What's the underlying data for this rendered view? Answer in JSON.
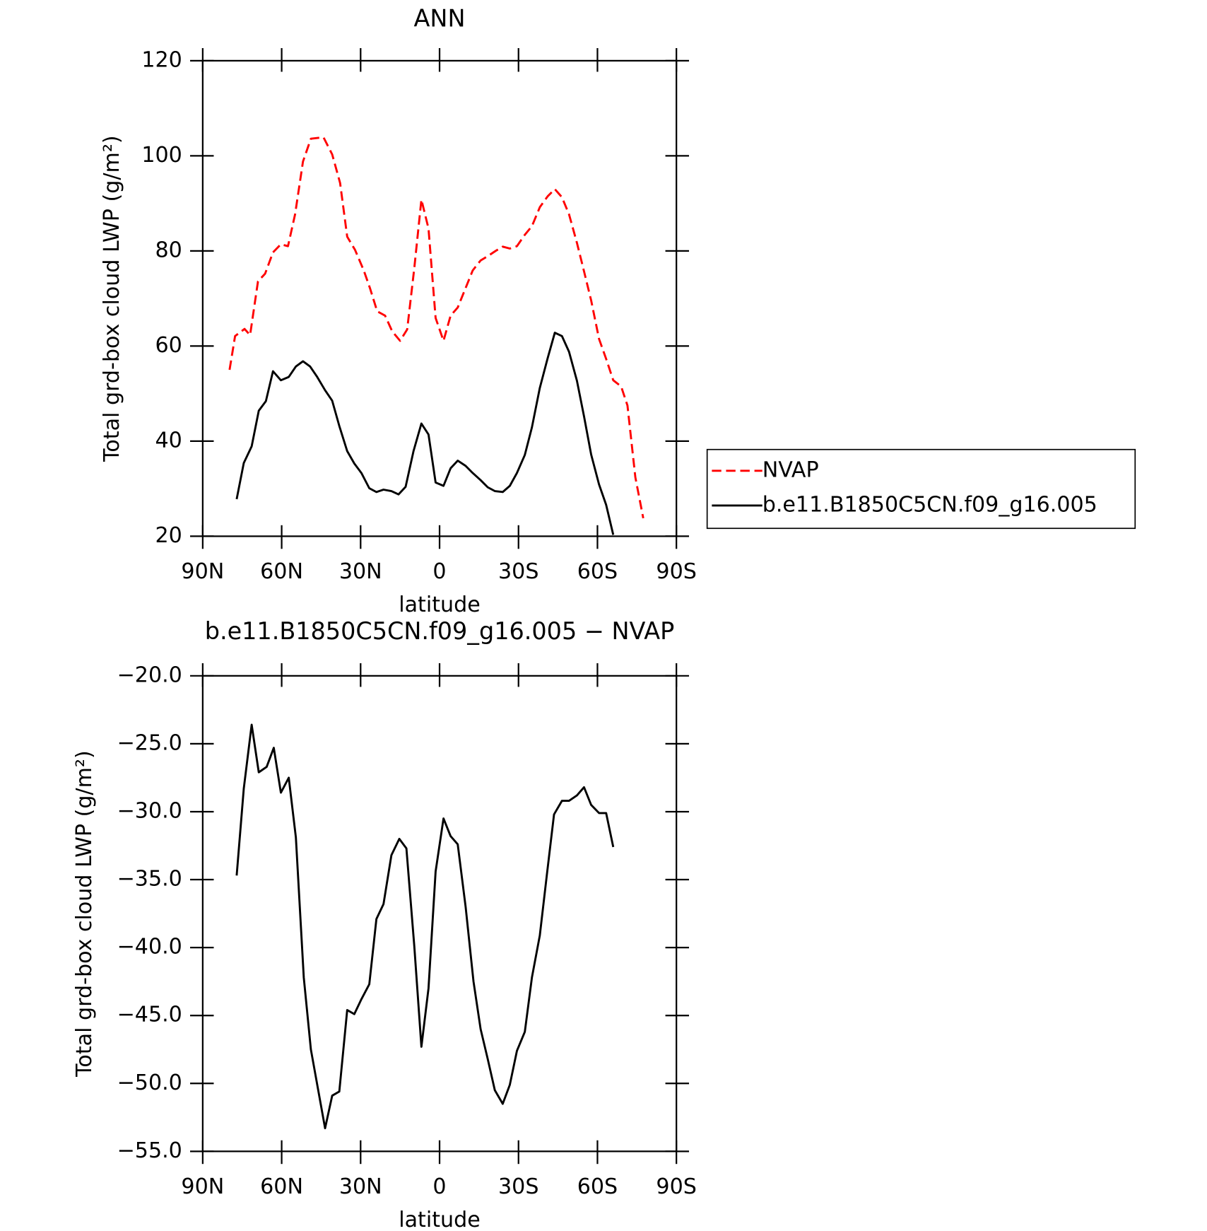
{
  "chart_data": [
    {
      "type": "line",
      "title": "ANN",
      "xlabel": "latitude",
      "ylabel": "Total grd-box cloud LWP (g/m²)",
      "xlim": [
        90,
        -90
      ],
      "xticks": [
        {
          "value": 90,
          "label": "90N"
        },
        {
          "value": 60,
          "label": "60N"
        },
        {
          "value": 30,
          "label": "30N"
        },
        0,
        {
          "value": -30,
          "label": "30S"
        },
        {
          "value": -60,
          "label": "60S"
        },
        {
          "value": -90,
          "label": "90S"
        }
      ],
      "ylim": [
        20,
        120
      ],
      "yticks": [
        20,
        40,
        60,
        80,
        100,
        120
      ],
      "legend": "right",
      "series": [
        {
          "name": "NVAP",
          "color": "#ff0000",
          "linestyle": "dashed",
          "x": [
            79.8,
            77.7,
            74.1,
            72.0,
            69.0,
            66.3,
            63.3,
            60.3,
            57.6,
            54.9,
            51.9,
            48.9,
            44.1,
            40.8,
            37.8,
            35.1,
            32.1,
            28.8,
            26.4,
            23.7,
            20.7,
            18.0,
            15.0,
            12.3,
            9.6,
            6.9,
            4.2,
            1.5,
            -1.5,
            -4.2,
            -6.9,
            -9.9,
            -12.6,
            -15.6,
            -18.3,
            -21.3,
            -24.0,
            -26.7,
            -29.4,
            -32.4,
            -35.1,
            -38.1,
            -41.1,
            -43.8,
            -46.5,
            -49.2,
            -52.2,
            -54.9,
            -57.6,
            -60.6,
            -63.3,
            -66.0,
            -69.0,
            -71.4,
            -74.4,
            -77.4
          ],
          "values": [
            55.0,
            62.1,
            63.6,
            62.3,
            73.6,
            75.2,
            79.7,
            81.4,
            81.0,
            87.7,
            98.8,
            103.6,
            103.9,
            100.3,
            94.3,
            83.0,
            80.2,
            75.9,
            72.1,
            67.3,
            66.4,
            63.1,
            61.1,
            63.5,
            76.4,
            90.8,
            84.7,
            65.9,
            61.1,
            66.4,
            68.1,
            72.2,
            75.9,
            78.0,
            78.9,
            80.0,
            80.9,
            80.5,
            81.0,
            83.4,
            85.2,
            89.2,
            91.5,
            93.0,
            91.3,
            87.7,
            81.7,
            75.7,
            69.6,
            61.5,
            57.3,
            52.8,
            51.5,
            47.5,
            32.4,
            23.8
          ]
        },
        {
          "name": "b.e11.B1850C5CN.f09_g16.005",
          "color": "#000000",
          "linestyle": "solid",
          "x": [
            77.1,
            74.4,
            71.4,
            68.7,
            66.0,
            63.3,
            60.3,
            57.3,
            54.6,
            51.9,
            49.2,
            46.5,
            43.5,
            40.8,
            38.1,
            35.1,
            32.4,
            29.7,
            26.7,
            24.0,
            21.3,
            18.3,
            15.6,
            12.9,
            9.9,
            6.9,
            4.2,
            1.5,
            -1.5,
            -4.2,
            -6.9,
            -9.9,
            -12.6,
            -15.6,
            -18.3,
            -21.0,
            -24.0,
            -26.7,
            -29.4,
            -32.4,
            -35.1,
            -38.1,
            -41.1,
            -43.8,
            -46.5,
            -49.2,
            -52.2,
            -54.9,
            -57.6,
            -60.6,
            -63.3,
            -66.0
          ],
          "values": [
            27.8,
            35.4,
            38.9,
            46.4,
            48.4,
            54.7,
            52.8,
            53.5,
            55.7,
            56.8,
            55.7,
            53.5,
            50.7,
            48.5,
            43.2,
            37.9,
            35.3,
            33.3,
            30.1,
            29.3,
            29.8,
            29.5,
            28.8,
            30.4,
            37.9,
            43.7,
            41.4,
            31.3,
            30.6,
            34.3,
            35.9,
            34.8,
            33.3,
            31.8,
            30.3,
            29.5,
            29.3,
            30.6,
            33.3,
            37.1,
            42.9,
            51.2,
            57.5,
            62.8,
            62.1,
            58.8,
            52.7,
            45.2,
            37.2,
            30.9,
            26.6,
            20.3
          ]
        }
      ]
    },
    {
      "type": "line",
      "title": "b.e11.B1850C5CN.f09_g16.005 − NVAP",
      "xlabel": "latitude",
      "ylabel": "Total grd-box cloud LWP (g/m²)",
      "xlim": [
        90,
        -90
      ],
      "xticks": [
        {
          "value": 90,
          "label": "90N"
        },
        {
          "value": 60,
          "label": "60N"
        },
        {
          "value": 30,
          "label": "30N"
        },
        0,
        {
          "value": -30,
          "label": "30S"
        },
        {
          "value": -60,
          "label": "60S"
        },
        {
          "value": -90,
          "label": "90S"
        }
      ],
      "ylim": [
        -55,
        -20
      ],
      "yticks": [
        {
          "value": -55,
          "label": "−55.0"
        },
        {
          "value": -50,
          "label": "−50.0"
        },
        {
          "value": -45,
          "label": "−45.0"
        },
        {
          "value": -40,
          "label": "−40.0"
        },
        {
          "value": -35,
          "label": "−35.0"
        },
        {
          "value": -30,
          "label": "−30.0"
        },
        {
          "value": -25,
          "label": "−25.0"
        },
        {
          "value": -20,
          "label": "−20.0"
        }
      ],
      "series": [
        {
          "color": "#000000",
          "linestyle": "solid",
          "x": [
            77.1,
            74.4,
            71.4,
            68.7,
            65.7,
            63.0,
            60.3,
            57.3,
            54.6,
            51.6,
            48.9,
            46.2,
            43.5,
            40.8,
            38.1,
            35.1,
            32.4,
            29.7,
            26.7,
            24.0,
            21.3,
            18.3,
            15.3,
            12.6,
            9.6,
            6.9,
            4.2,
            1.5,
            -1.5,
            -4.2,
            -6.9,
            -9.9,
            -12.9,
            -15.6,
            -18.3,
            -21.0,
            -24.0,
            -26.7,
            -29.4,
            -32.4,
            -35.1,
            -38.1,
            -40.8,
            -43.5,
            -46.5,
            -49.2,
            -52.2,
            -54.9,
            -57.6,
            -60.6,
            -63.3,
            -66.0
          ],
          "values": [
            -34.7,
            -28.3,
            -23.6,
            -27.1,
            -26.7,
            -25.3,
            -28.6,
            -27.5,
            -31.9,
            -42.2,
            -47.5,
            -50.4,
            -53.3,
            -50.9,
            -50.6,
            -44.6,
            -44.9,
            -43.8,
            -42.7,
            -37.9,
            -36.8,
            -33.2,
            -32.0,
            -32.7,
            -39.9,
            -47.3,
            -43.0,
            -34.4,
            -30.5,
            -31.8,
            -32.4,
            -37.0,
            -42.5,
            -46.0,
            -48.2,
            -50.5,
            -51.5,
            -50.1,
            -47.6,
            -46.2,
            -42.2,
            -39.1,
            -34.6,
            -30.2,
            -29.2,
            -29.2,
            -28.8,
            -28.2,
            -29.5,
            -30.1,
            -30.1,
            -32.6
          ]
        }
      ]
    }
  ]
}
